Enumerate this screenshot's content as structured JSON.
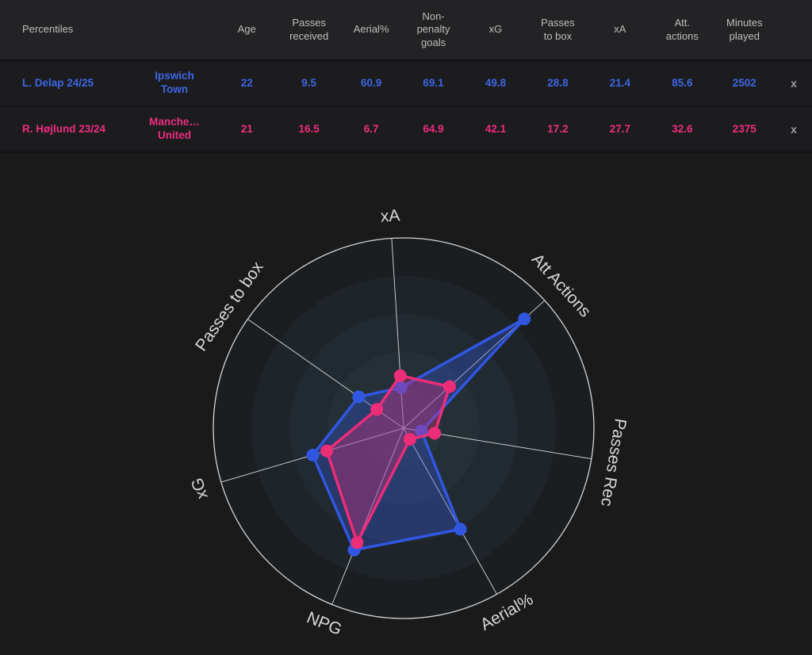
{
  "table": {
    "name_header": "Percentiles",
    "columns": [
      "Age",
      "Passes\nreceived",
      "Aerial%",
      "Non-\npenalty\ngoals",
      "xG",
      "Passes\nto box",
      "xA",
      "Att.\nactions",
      "Minutes\nplayed"
    ],
    "rows": [
      {
        "player": "L. Delap 24/25",
        "team": "Ipswich\nTown",
        "color": "#3d66e3",
        "values": [
          "22",
          "9.5",
          "60.9",
          "69.1",
          "49.8",
          "28.8",
          "21.4",
          "85.6",
          "2502"
        ],
        "close_label": "x"
      },
      {
        "player": "R. Højlund 23/24",
        "team": "Manche…\nUnited",
        "color": "#ee2d7c",
        "values": [
          "21",
          "16.5",
          "6.7",
          "64.9",
          "42.1",
          "17.2",
          "27.7",
          "32.6",
          "2375"
        ],
        "close_label": "x"
      }
    ]
  },
  "chart_data": {
    "type": "radar",
    "axes": [
      "xA",
      "Att Actions",
      "Passes Rec",
      "Aerial%",
      "NPG",
      "xG",
      "Passes to box"
    ],
    "scale_min": 0,
    "scale_max": 100,
    "rotation_offset_deg": -3.6,
    "series": [
      {
        "name": "L. Delap 24/25",
        "color": "#3157e2",
        "fill_opacity": 0.33,
        "values": [
          21.4,
          85.6,
          9.5,
          60.9,
          69.1,
          49.8,
          28.8
        ]
      },
      {
        "name": "R. Højlund 23/24",
        "color": "#ec2d78",
        "fill_opacity": 0.33,
        "values": [
          27.7,
          32.6,
          16.5,
          6.7,
          64.9,
          42.1,
          17.2
        ]
      }
    ],
    "layout": {
      "grid": "concentric-rings",
      "ring_colors_outer_to_inner": [
        "#1a1e21",
        "#1e2429",
        "#212a31",
        "#243036",
        "#273439"
      ],
      "axis_line_color": "#c6c9cb",
      "outer_circle_color": "#d2d4d6",
      "legend": "table-above"
    }
  }
}
